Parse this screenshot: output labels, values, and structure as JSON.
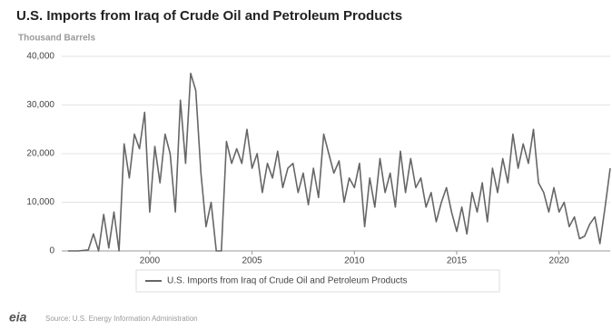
{
  "chart_data": {
    "type": "line",
    "title": "U.S. Imports from Iraq of Crude Oil and Petroleum Products",
    "subtitle": "Thousand Barrels",
    "source": "Source: U.S. Energy Information Administration",
    "logo": "eia",
    "x": [
      1996.0,
      1996.5,
      1997.0,
      1997.25,
      1997.5,
      1997.75,
      1998.0,
      1998.25,
      1998.5,
      1998.75,
      1999.0,
      1999.25,
      1999.5,
      1999.75,
      2000.0,
      2000.25,
      2000.5,
      2000.75,
      2001.0,
      2001.25,
      2001.5,
      2001.75,
      2002.0,
      2002.25,
      2002.5,
      2002.75,
      2003.0,
      2003.25,
      2003.5,
      2003.75,
      2004.0,
      2004.25,
      2004.5,
      2004.75,
      2005.0,
      2005.25,
      2005.5,
      2005.75,
      2006.0,
      2006.25,
      2006.5,
      2006.75,
      2007.0,
      2007.25,
      2007.5,
      2007.75,
      2008.0,
      2008.25,
      2008.5,
      2008.75,
      2009.0,
      2009.25,
      2009.5,
      2009.75,
      2010.0,
      2010.25,
      2010.5,
      2010.75,
      2011.0,
      2011.25,
      2011.5,
      2011.75,
      2012.0,
      2012.25,
      2012.5,
      2012.75,
      2013.0,
      2013.25,
      2013.5,
      2013.75,
      2014.0,
      2014.25,
      2014.5,
      2014.75,
      2015.0,
      2015.25,
      2015.5,
      2015.75,
      2016.0,
      2016.25,
      2016.5,
      2016.75,
      2017.0,
      2017.25,
      2017.5,
      2017.75,
      2018.0,
      2018.25,
      2018.5,
      2018.75,
      2019.0,
      2019.25,
      2019.5,
      2019.75,
      2020.0,
      2020.25,
      2020.5,
      2020.75,
      2021.0,
      2021.25,
      2021.5,
      2021.75,
      2022.0,
      2022.25,
      2022.5
    ],
    "series": [
      {
        "name": "U.S. Imports from Iraq of Crude Oil and Petroleum Products",
        "color": "#666666",
        "values": [
          0,
          0,
          200,
          3500,
          0,
          7500,
          600,
          8000,
          0,
          22000,
          15000,
          24000,
          21000,
          28500,
          8000,
          21500,
          14000,
          24000,
          20000,
          8000,
          31000,
          18000,
          36500,
          33000,
          16000,
          5000,
          10000,
          0,
          0,
          22500,
          18000,
          21000,
          18000,
          25000,
          17000,
          20000,
          12000,
          18000,
          15000,
          20500,
          13000,
          17000,
          18000,
          12000,
          16000,
          9500,
          17000,
          11000,
          24000,
          20000,
          16000,
          18500,
          10000,
          15000,
          13000,
          18000,
          5000,
          15000,
          9000,
          19000,
          12000,
          16000,
          9000,
          20500,
          12000,
          19000,
          13000,
          15000,
          9000,
          12000,
          6000,
          10000,
          13000,
          8000,
          4000,
          9000,
          3500,
          12000,
          8000,
          14000,
          6000,
          17000,
          12000,
          19000,
          14000,
          24000,
          17000,
          22000,
          18000,
          25000,
          14000,
          12000,
          8000,
          13000,
          8000,
          10000,
          5000,
          7000,
          2500,
          3000,
          5500,
          7000,
          1500,
          9000,
          17000
        ]
      }
    ],
    "xlim": [
      1995.7,
      2022.5
    ],
    "xticks": [
      2000,
      2005,
      2010,
      2015,
      2020
    ],
    "ylim": [
      0,
      40000
    ],
    "yticks": [
      0,
      {
        "value": 10000,
        "label": "10,000"
      },
      {
        "value": 20000,
        "label": "20,000"
      },
      {
        "value": 30000,
        "label": "30,000"
      },
      {
        "value": 40000,
        "label": "40,000"
      }
    ],
    "grid": true
  }
}
